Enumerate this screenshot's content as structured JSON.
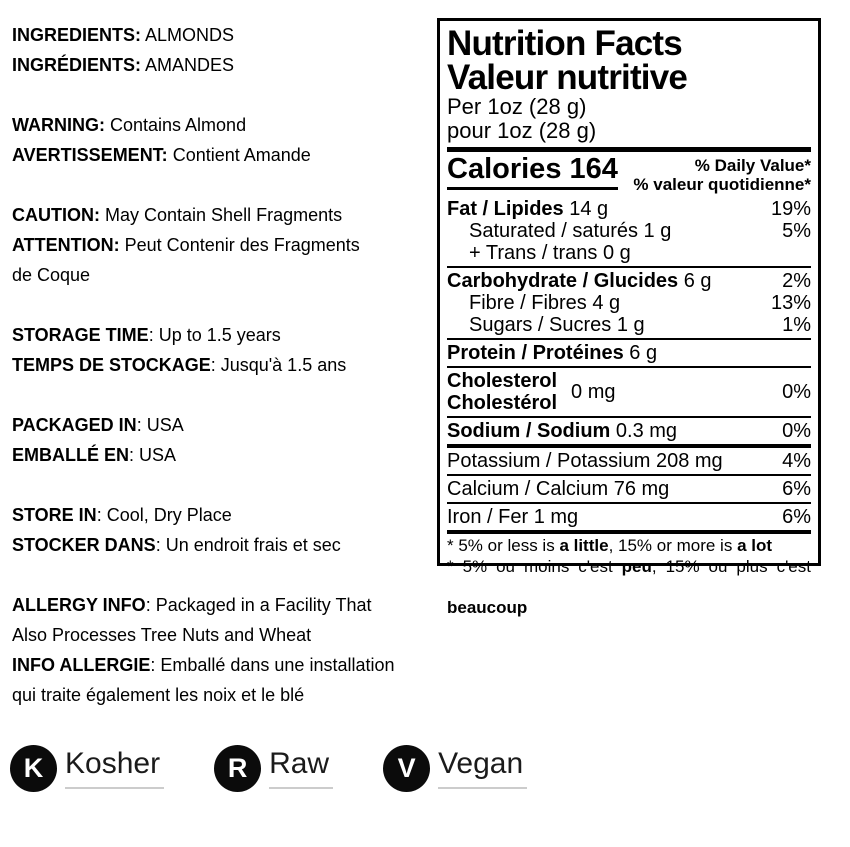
{
  "left": {
    "lines": [
      [
        {
          "t": "INGREDIENTS:",
          "b": true
        },
        {
          "t": " ALMONDS"
        }
      ],
      [
        {
          "t": "INGRÉDIENTS:",
          "b": true
        },
        {
          "t": " AMANDES"
        }
      ],
      [
        {
          "t": "WARNING:",
          "b": true
        },
        {
          "t": " Contains Almond"
        }
      ],
      [
        {
          "t": "AVERTISSEMENT:",
          "b": true
        },
        {
          "t": " Contient Amande"
        }
      ],
      [
        {
          "t": "CAUTION:",
          "b": true
        },
        {
          "t": " May Contain Shell Fragments"
        }
      ],
      [
        {
          "t": "ATTENTION:",
          "b": true
        },
        {
          "t": " Peut Contenir des Fragments"
        }
      ],
      [
        {
          "t": "de Coque"
        }
      ],
      [
        {
          "t": "STORAGE TIME",
          "b": true
        },
        {
          "t": ": Up to 1.5 years"
        }
      ],
      [
        {
          "t": "TEMPS DE STOCKAGE",
          "b": true
        },
        {
          "t": ": Jusqu'à 1.5 ans"
        }
      ],
      [
        {
          "t": "PACKAGED IN",
          "b": true
        },
        {
          "t": ": USA"
        }
      ],
      [
        {
          "t": "EMBALLÉ EN",
          "b": true
        },
        {
          "t": ": USA"
        }
      ],
      [
        {
          "t": "STORE IN",
          "b": true
        },
        {
          "t": ": Cool, Dry Place"
        }
      ],
      [
        {
          "t": "STOCKER DANS",
          "b": true
        },
        {
          "t": ": Un endroit frais et sec"
        }
      ],
      [
        {
          "t": "ALLERGY INFO",
          "b": true
        },
        {
          "t": ": Packaged in a Facility That"
        }
      ],
      [
        {
          "t": "Also Processes Tree Nuts and Wheat"
        }
      ],
      [
        {
          "t": "INFO ALLERGIE",
          "b": true
        },
        {
          "t": ": Emballé dans une installation"
        }
      ],
      [
        {
          "t": "qui traite également les noix et le blé"
        }
      ]
    ]
  },
  "panel": {
    "title_en": "Nutrition Facts",
    "title_fr": "Valeur nutritive",
    "serving_en": "Per 1oz (28 g)",
    "serving_fr": "pour 1oz (28 g)",
    "calories": "Calories 164",
    "daily_value_en": "% Daily Value*",
    "daily_value_fr": "% valeur quotidienne*",
    "rows": {
      "fat": {
        "runs": [
          {
            "t": "Fat / Lipides ",
            "b": true
          },
          {
            "t": "14 g"
          }
        ],
        "pct": "19%"
      },
      "saturated": {
        "runs": [
          {
            "t": "Saturated / saturés 1 g"
          }
        ],
        "pct": "5%"
      },
      "trans": {
        "runs": [
          {
            "t": "+ Trans / trans 0 g"
          }
        ],
        "pct": ""
      },
      "carbohydrate": {
        "runs": [
          {
            "t": "Carbohydrate / Glucides ",
            "b": true
          },
          {
            "t": "6 g"
          }
        ],
        "pct": "2%"
      },
      "fibre": {
        "runs": [
          {
            "t": "Fibre / Fibres 4 g"
          }
        ],
        "pct": "13%"
      },
      "sugars": {
        "runs": [
          {
            "t": "Sugars / Sucres 1 g"
          }
        ],
        "pct": "1%"
      },
      "protein": {
        "runs": [
          {
            "t": "Protein / Protéines ",
            "b": true
          },
          {
            "t": "6 g"
          }
        ],
        "pct": ""
      },
      "cholesterol": {
        "name_en": "Cholesterol",
        "name_fr": "Cholestérol",
        "amount": "0 mg",
        "pct": "0%"
      },
      "sodium": {
        "runs": [
          {
            "t": "Sodium / Sodium ",
            "b": true
          },
          {
            "t": "0.3 mg"
          }
        ],
        "pct": "0%"
      },
      "potassium": {
        "runs": [
          {
            "t": "Potassium / Potassium 208 mg"
          }
        ],
        "pct": "4%"
      },
      "calcium": {
        "runs": [
          {
            "t": "Calcium / Calcium 76 mg"
          }
        ],
        "pct": "6%"
      },
      "iron": {
        "runs": [
          {
            "t": "Iron / Fer 1 mg"
          }
        ],
        "pct": "6%"
      }
    },
    "footnote_en": [
      {
        "t": "* 5% or less is "
      },
      {
        "t": "a little",
        "b": true
      },
      {
        "t": ", 15% or more is "
      },
      {
        "t": "a lot",
        "b": true
      }
    ],
    "footnote_fr_1": [
      {
        "t": "* 5% ou moins c'est "
      },
      {
        "t": "peu",
        "b": true
      },
      {
        "t": ", 15% ou plus c'est"
      }
    ],
    "footnote_fr_2": [
      {
        "t": "beaucoup",
        "b": true
      }
    ]
  },
  "badges": [
    {
      "letter": "K",
      "label": "Kosher"
    },
    {
      "letter": "R",
      "label": "Raw"
    },
    {
      "letter": "V",
      "label": "Vegan"
    }
  ],
  "colors": {
    "text": "#000000",
    "badge_circle": "#0b0b0b",
    "badge_underline": "#cccccc"
  }
}
